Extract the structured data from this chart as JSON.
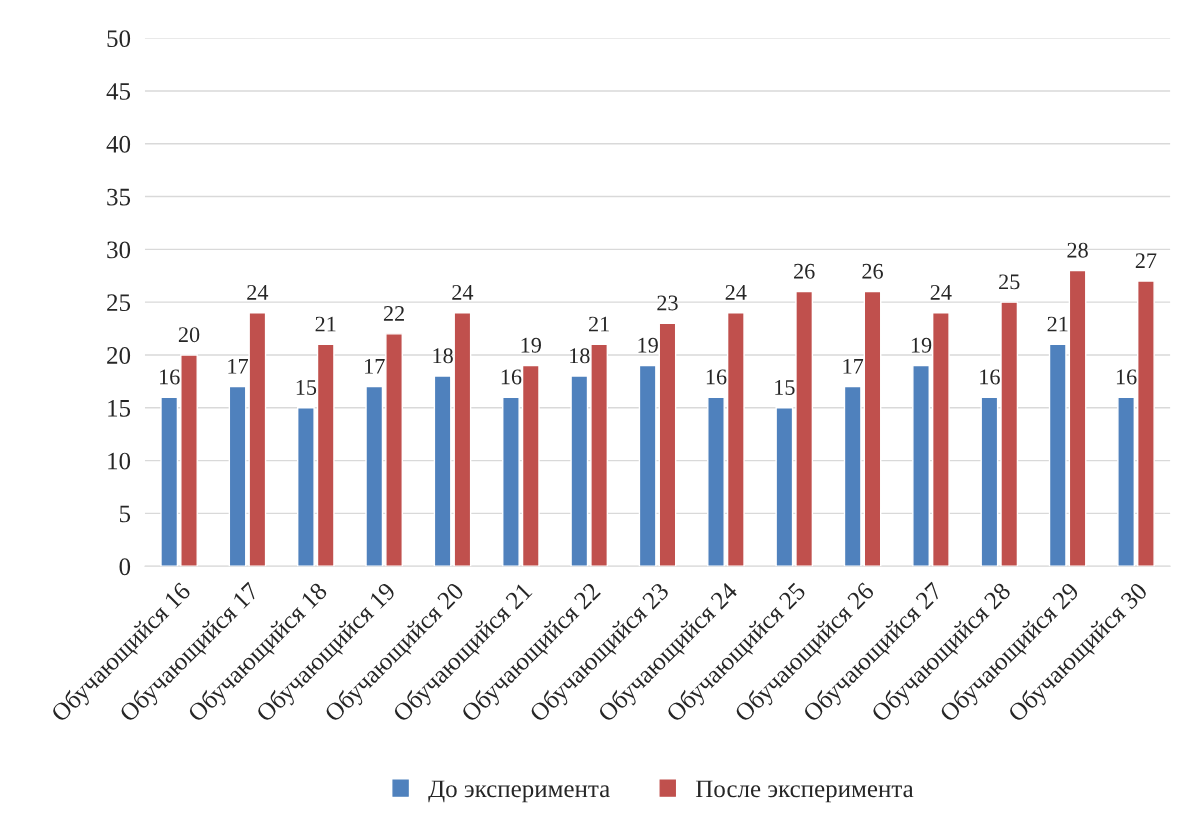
{
  "chart_data": {
    "type": "bar",
    "categories": [
      "Обучающийся 16",
      "Обучающийся 17",
      "Обучающийся 18",
      "Обучающийся 19",
      "Обучающийся 20",
      "Обучающийся 21",
      "Обучающийся 22",
      "Обучающийся 23",
      "Обучающийся 24",
      "Обучающийся 25",
      "Обучающийся 26",
      "Обучающийся 27",
      "Обучающийся 28",
      "Обучающийся 29",
      "Обучающийся 30"
    ],
    "series": [
      {
        "name": "До эксперимента",
        "color": "#4f81bd",
        "values": [
          16,
          17,
          15,
          17,
          18,
          16,
          18,
          19,
          16,
          15,
          17,
          19,
          16,
          21,
          16
        ]
      },
      {
        "name": "После эксперимента",
        "color": "#c0504d",
        "values": [
          20,
          24,
          21,
          22,
          24,
          19,
          21,
          23,
          24,
          26,
          26,
          24,
          25,
          28,
          27
        ]
      }
    ],
    "ylim": [
      0,
      50
    ],
    "yticks": [
      0,
      5,
      10,
      15,
      20,
      25,
      30,
      35,
      40,
      45,
      50
    ],
    "grid": "y",
    "legend": "bottom",
    "data_labels": true
  }
}
